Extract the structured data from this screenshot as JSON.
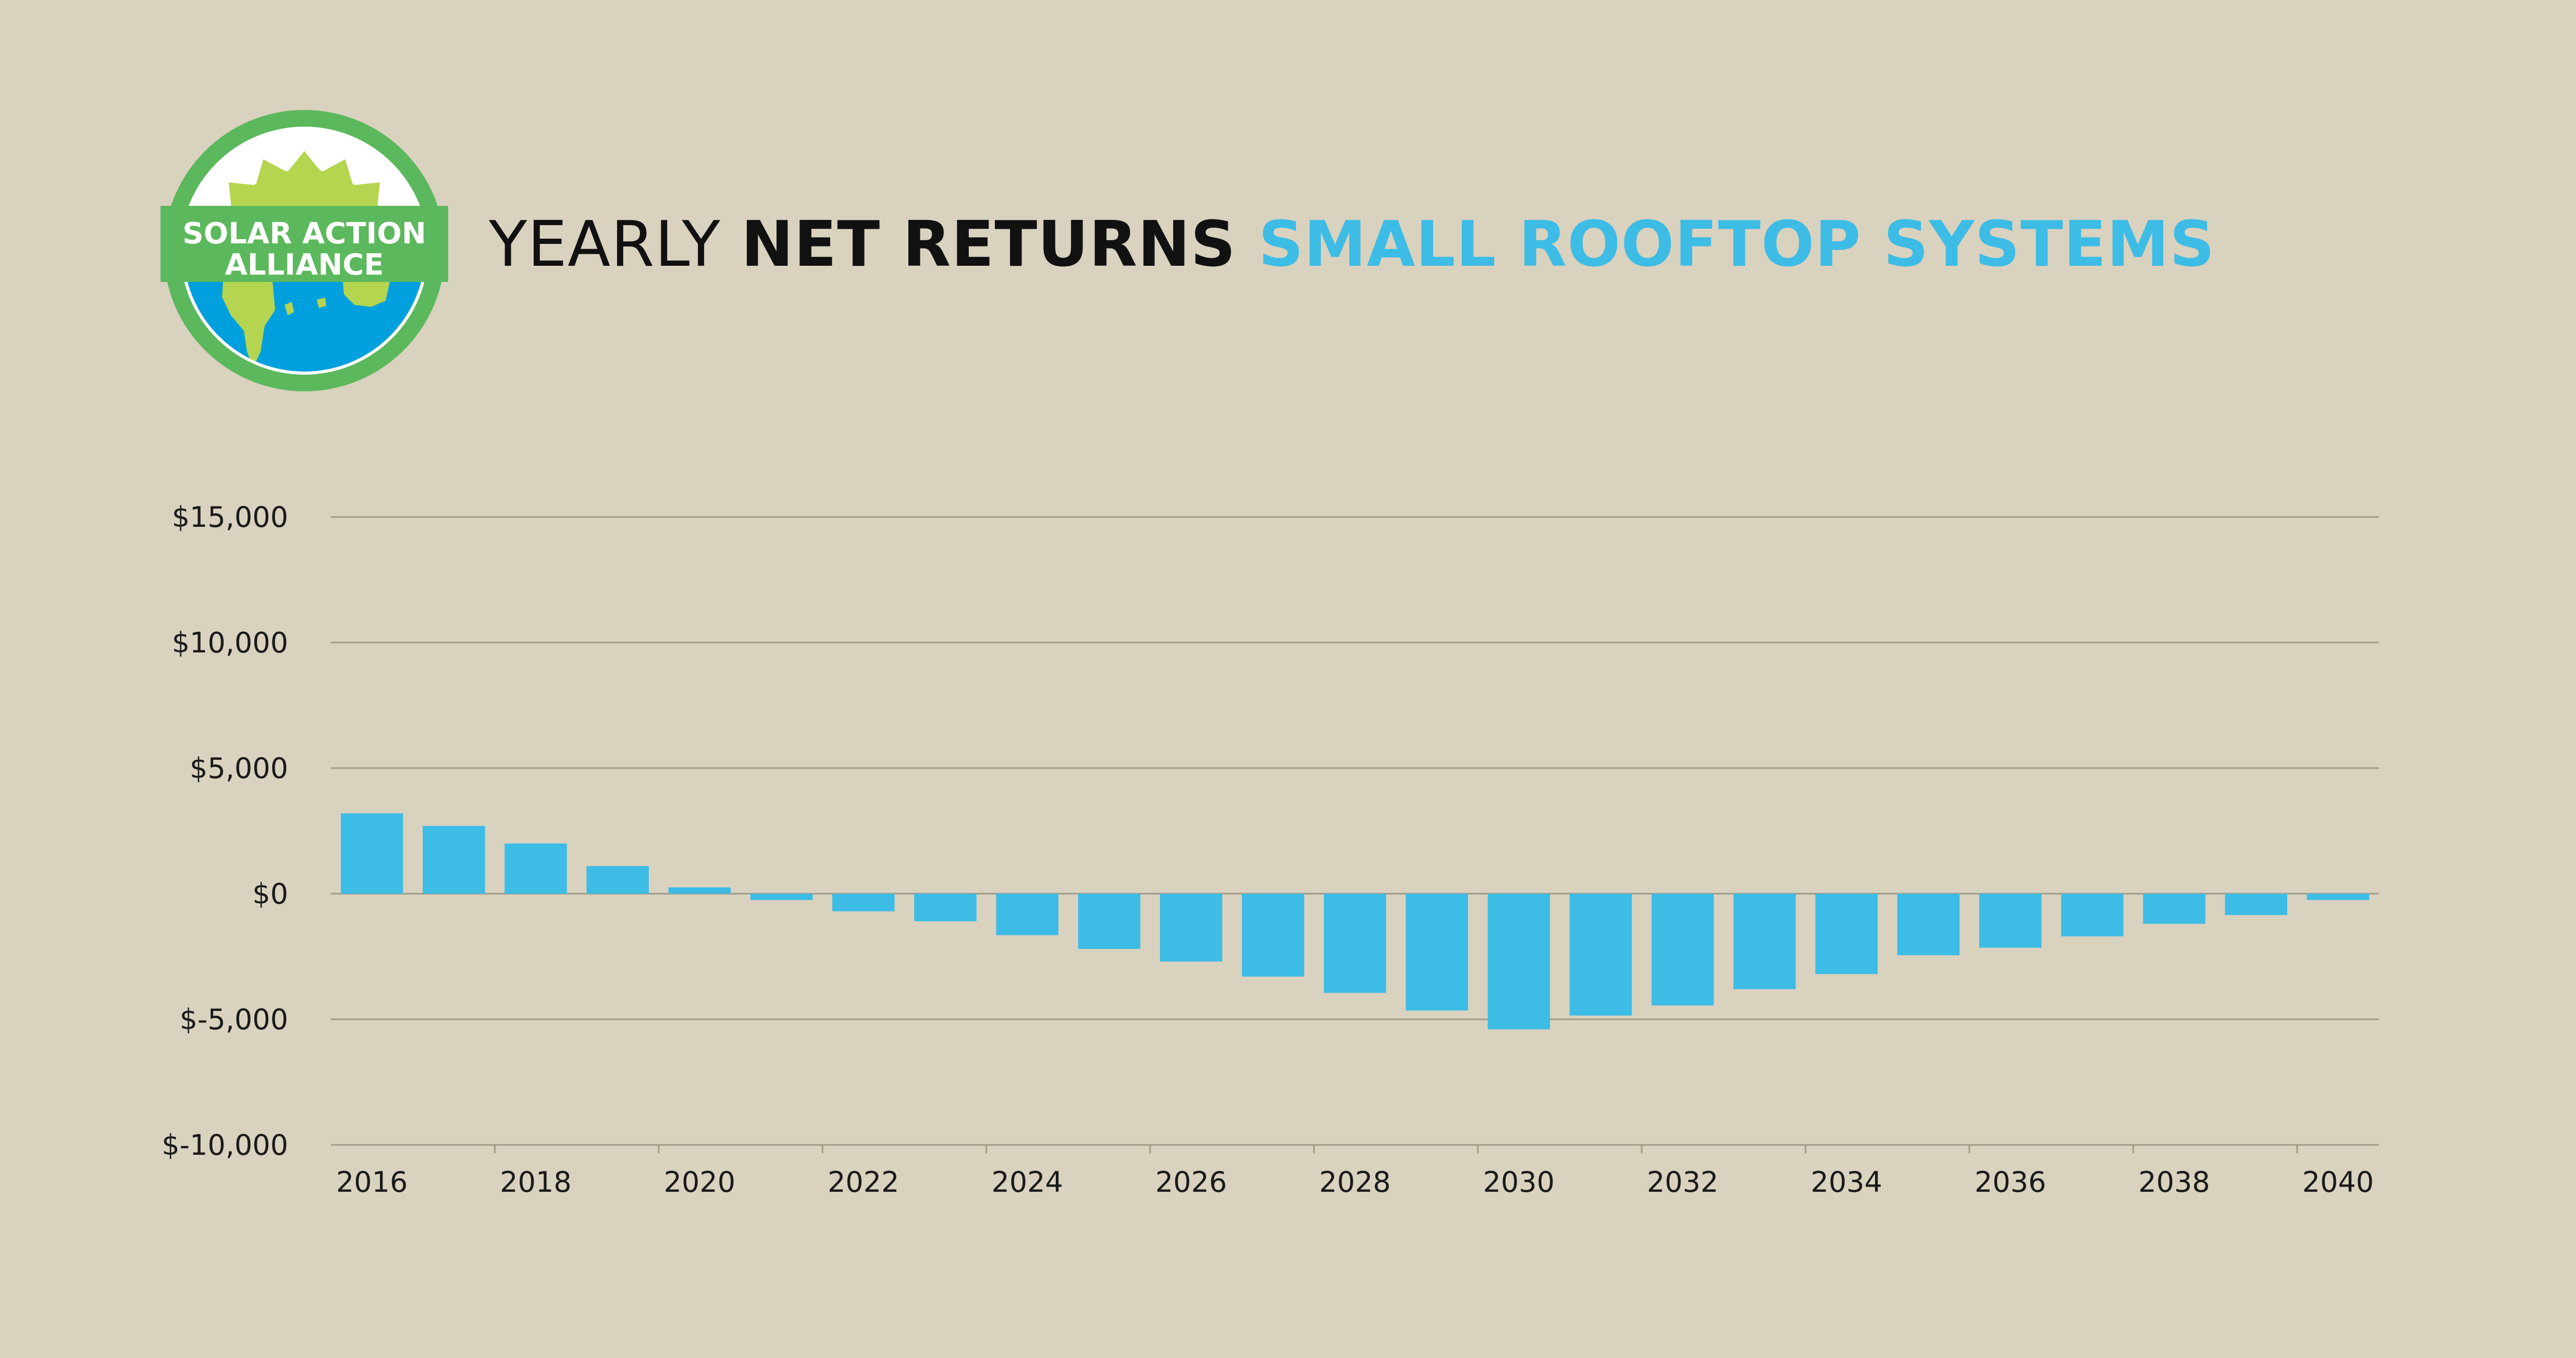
{
  "logo": {
    "line1": "SOLAR ACTION",
    "line2": "ALLIANCE",
    "colors": {
      "ring": "#5cb85c",
      "sun": "#b5d44f",
      "water": "#00a0df",
      "band": "#5cb85c"
    }
  },
  "title": {
    "part1": "YEARLY ",
    "part2": "NET RETURNS",
    "part3": " SMALL ROOFTOP SYSTEMS"
  },
  "colors": {
    "bar": "#3dbce6",
    "accent": "#3dbce6",
    "grid": "#a09a89",
    "background": "#d9d2bf"
  },
  "chart_data": {
    "type": "bar",
    "title": "",
    "xlabel": "",
    "ylabel": "",
    "ylim": [
      -10000,
      15000
    ],
    "yticks": [
      15000,
      10000,
      5000,
      0,
      -5000,
      -10000
    ],
    "ytick_labels": [
      "$15,000",
      "$10,000",
      "$5,000",
      "$0",
      "$-5,000",
      "$-10,000"
    ],
    "categories": [
      "2016",
      "2017",
      "2018",
      "2019",
      "2020",
      "2021",
      "2022",
      "2023",
      "2024",
      "2025",
      "2026",
      "2027",
      "2028",
      "2029",
      "2030",
      "2031",
      "2032",
      "2033",
      "2034",
      "2035",
      "2036",
      "2037",
      "2038",
      "2039",
      "2040"
    ],
    "xtick_labels": [
      "2016",
      "2018",
      "2020",
      "2022",
      "2024",
      "2026",
      "2028",
      "2030",
      "2032",
      "2034",
      "2036",
      "2038",
      "2040"
    ],
    "values": [
      3200,
      2700,
      2000,
      1100,
      250,
      -250,
      -700,
      -1100,
      -1650,
      -2200,
      -2700,
      -3300,
      -3950,
      -4650,
      -5400,
      -4850,
      -4450,
      -3800,
      -3200,
      -2450,
      -2150,
      -1700,
      -1200,
      -850,
      -250
    ],
    "grid": true,
    "legend": "none"
  }
}
